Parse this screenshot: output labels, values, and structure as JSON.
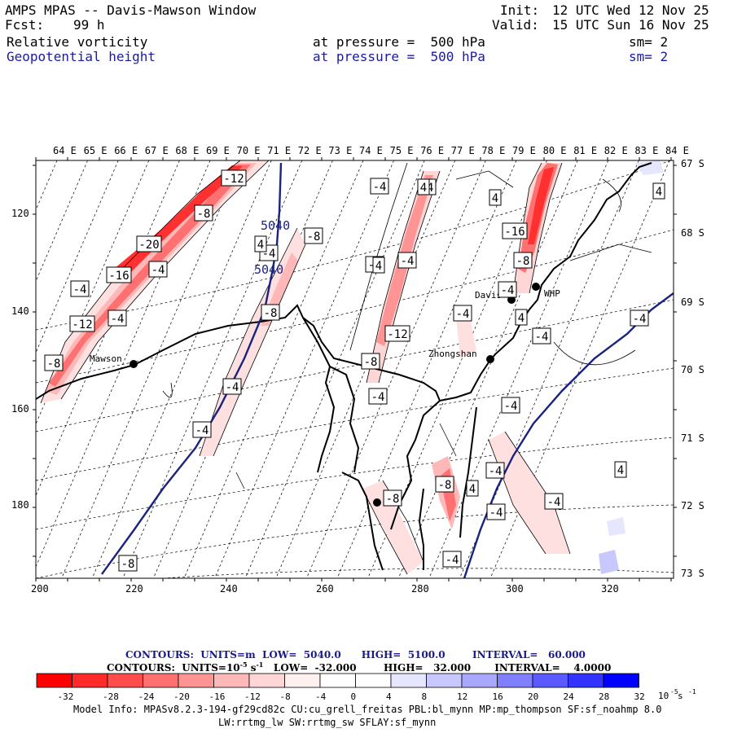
{
  "header": {
    "title": "AMPS MPAS -- Davis-Mawson Window",
    "fcst_label": "Fcst:",
    "fcst_value": "99 h",
    "init_label": "Init:",
    "init_value": "12 UTC Wed 12 Nov 25",
    "valid_label": "Valid:",
    "valid_value": "15 UTC Sun 16 Nov 25",
    "field1": {
      "name": "Relative vorticity",
      "level": "at pressure =  500 hPa",
      "sm": "sm= 2"
    },
    "field2": {
      "name": "Geopotential height",
      "level": "at pressure =  500 hPa",
      "sm": "sm= 2"
    }
  },
  "map": {
    "top_axis_labels": [
      "64 E",
      "65 E",
      "66 E",
      "67 E",
      "68 E",
      "69 E",
      "70 E",
      "71 E",
      "72 E",
      "73 E",
      "74 E",
      "75 E",
      "76 E",
      "77 E",
      "78 E",
      "79 E",
      "80 E",
      "81 E",
      "82 E",
      "83 E",
      "84 E"
    ],
    "right_axis_labels": [
      "67 S",
      "68 S",
      "69 S",
      "70 S",
      "71 S",
      "72 S",
      "73 S"
    ],
    "left_axis_labels": [
      "120",
      "140",
      "160",
      "180"
    ],
    "bottom_axis_labels": [
      "200",
      "220",
      "240",
      "260",
      "280",
      "300",
      "320"
    ],
    "stations": [
      "Mawson",
      "Zhongshan",
      "Davis",
      "WHP"
    ],
    "height_contour_labels": [
      "5040",
      "5040"
    ],
    "vorticity_box_labels": [
      "-12",
      "-8",
      "-20",
      "-16",
      "-4",
      "-4",
      "-4",
      "-4",
      "-12",
      "-8",
      "-8",
      "-4",
      "-4",
      "-8",
      "-4",
      "-4",
      "-12",
      "-4",
      "-8",
      "-4",
      "-4",
      "-16",
      "-8",
      "-4",
      "-4",
      "-4",
      "-4",
      "-4",
      "-8",
      "-4",
      "-8",
      "-4",
      "-4",
      "-8",
      "-4",
      "4",
      "4",
      "4",
      "4",
      "4",
      "4",
      "4",
      "4"
    ],
    "colors": {
      "geopotential": "#1a237e",
      "coast": "#000000",
      "neg_vort_strong": "#ff1a1a",
      "neg_vort_light": "#ffe0e0"
    }
  },
  "footer": {
    "contours1": "CONTOURS:  UNITS=m  LOW=  5040.0      HIGH=  5100.0        INTERVAL=   60.000",
    "contours2": "CONTOURS:  UNITS=10",
    "contours2_exp": "-5",
    "contours2_rest": " s",
    "contours2_exp2": "-1",
    "contours2_tail": "   LOW=  -32.000        HIGH=   32.000       INTERVAL=    4.0000",
    "colorbar_labels": [
      "-32",
      "-28",
      "-24",
      "-20",
      "-16",
      "-12",
      "-8",
      "-4",
      "0",
      "4",
      "8",
      "12",
      "16",
      "20",
      "24",
      "28",
      "32"
    ],
    "colorbar_colors": [
      "#ff0000",
      "#ff2a2a",
      "#ff4d4d",
      "#ff7070",
      "#ff9494",
      "#ffb8b8",
      "#ffd6d6",
      "#fff0f0",
      "#ffffff",
      "#ffffff",
      "#e6e6ff",
      "#c8c8ff",
      "#a8a8ff",
      "#8080ff",
      "#5a5aff",
      "#3333ff",
      "#0000ff"
    ],
    "colorbar_unit": "10",
    "colorbar_unit_exp": "-5",
    "colorbar_unit_s": " s",
    "colorbar_unit_exp2": "-1",
    "model_info1": "Model Info: MPASv8.2.3-194-gf29cd82c CU:cu_grell_freitas PBL:bl_mynn MP:mp_thompson SF:sf_noahmp 8.0",
    "model_info2": "LW:rrtmg_lw SW:rrtmg_sw SFLAY:sf_mynn"
  }
}
